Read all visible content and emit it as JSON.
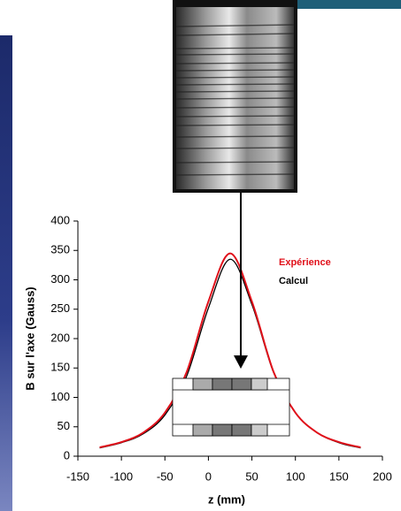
{
  "chart_data": {
    "type": "line",
    "xlabel": "z (mm)",
    "ylabel": "B sur l'axe (Gauss)",
    "x": [
      -125,
      -100,
      -75,
      -50,
      -25,
      0,
      25,
      50,
      75,
      100,
      125,
      150,
      175
    ],
    "series": [
      {
        "name": "Expérience",
        "color": "#e0101a",
        "values": [
          15,
          24,
          40,
          74,
          143,
          263,
          345,
          263,
          143,
          74,
          40,
          24,
          15
        ]
      },
      {
        "name": "Calcul",
        "color": "#000000",
        "values": [
          14,
          23,
          38,
          70,
          136,
          252,
          335,
          258,
          142,
          74,
          40,
          23,
          14
        ]
      }
    ],
    "xlim": [
      -150,
      200
    ],
    "ylim": [
      0,
      400
    ],
    "xticks": [
      -150,
      -100,
      -50,
      0,
      50,
      100,
      150,
      200
    ],
    "yticks": [
      0,
      50,
      100,
      150,
      200,
      250,
      300,
      350,
      400
    ],
    "legend": "upper right"
  }
}
